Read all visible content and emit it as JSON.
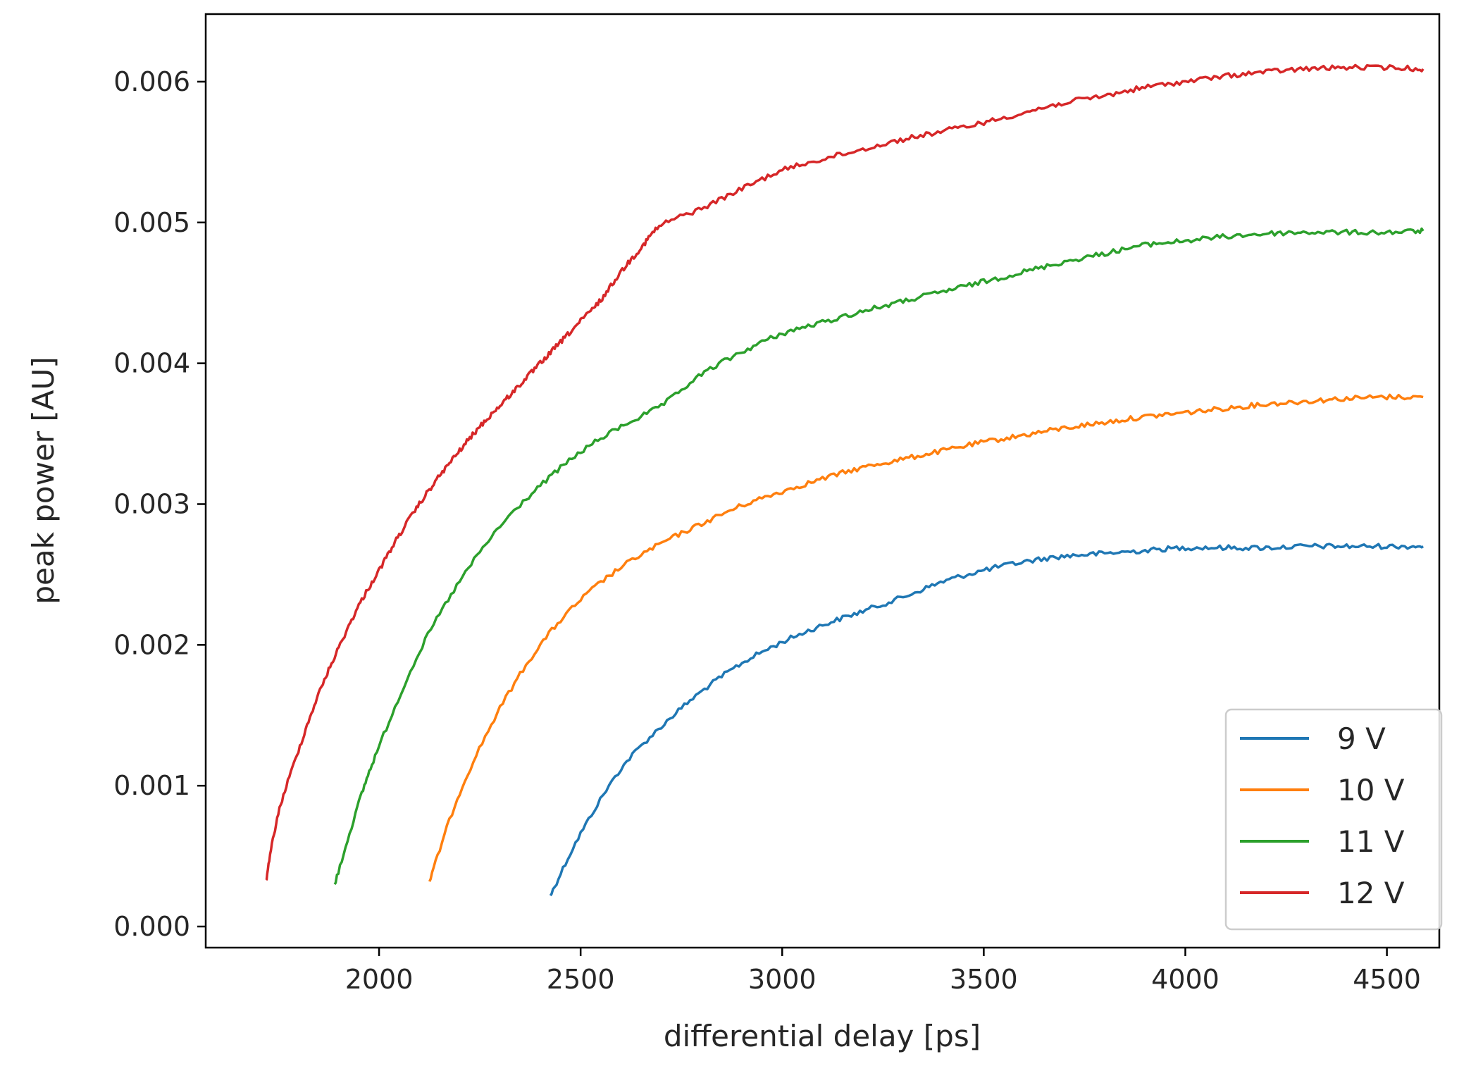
{
  "chart_data": {
    "type": "line",
    "title": "",
    "xlabel": "differential delay [ps]",
    "ylabel": "peak power [AU]",
    "xlim": [
      1570,
      4630
    ],
    "ylim": [
      -0.00015,
      0.00648
    ],
    "xticks": [
      2000,
      2500,
      3000,
      3500,
      4000,
      4500
    ],
    "xtick_labels": [
      "2000",
      "2500",
      "3000",
      "3500",
      "4000",
      "4500"
    ],
    "yticks": [
      0.0,
      0.001,
      0.002,
      0.003,
      0.004,
      0.005,
      0.006
    ],
    "ytick_labels": [
      "0.000",
      "0.001",
      "0.002",
      "0.003",
      "0.004",
      "0.005",
      "0.006"
    ],
    "grid": false,
    "legend_position": "lower-right",
    "series": [
      {
        "name": "9 V",
        "color": "#1f77b4",
        "x": [
          2425,
          2500,
          2600,
          2700,
          2800,
          2900,
          3000,
          3100,
          3200,
          3300,
          3400,
          3500,
          3600,
          3700,
          3800,
          3900,
          4000,
          4100,
          4200,
          4300,
          4400,
          4500,
          4590
        ],
        "y": [
          0.00022,
          0.00066,
          0.00112,
          0.00142,
          0.00167,
          0.00187,
          0.00202,
          0.00214,
          0.00224,
          0.00234,
          0.00245,
          0.00253,
          0.00259,
          0.00263,
          0.00265,
          0.00267,
          0.00269,
          0.00269,
          0.00269,
          0.0027,
          0.0027,
          0.0027,
          0.0027
        ]
      },
      {
        "name": "10 V",
        "color": "#ff7f0e",
        "x": [
          2125,
          2200,
          2300,
          2400,
          2500,
          2600,
          2700,
          2800,
          2900,
          3000,
          3100,
          3200,
          3300,
          3400,
          3500,
          3600,
          3700,
          3800,
          3900,
          4000,
          4100,
          4200,
          4300,
          4400,
          4500,
          4590
        ],
        "y": [
          0.00032,
          0.00095,
          0.00155,
          0.002,
          0.00232,
          0.00255,
          0.00272,
          0.00286,
          0.00299,
          0.00309,
          0.00318,
          0.00326,
          0.00332,
          0.00338,
          0.00344,
          0.00349,
          0.00354,
          0.00358,
          0.00362,
          0.00365,
          0.00368,
          0.00371,
          0.00373,
          0.00375,
          0.00376,
          0.00376
        ]
      },
      {
        "name": "11 V",
        "color": "#2ca02c",
        "x": [
          1890,
          1950,
          2000,
          2100,
          2200,
          2300,
          2400,
          2500,
          2600,
          2700,
          2800,
          2900,
          3000,
          3100,
          3200,
          3300,
          3400,
          3500,
          3600,
          3700,
          3800,
          3900,
          4000,
          4100,
          4200,
          4300,
          4400,
          4500,
          4590
        ],
        "y": [
          0.0003,
          0.00088,
          0.00128,
          0.00195,
          0.00245,
          0.00284,
          0.00313,
          0.00337,
          0.00355,
          0.0037,
          0.00392,
          0.00408,
          0.00421,
          0.00429,
          0.00437,
          0.00444,
          0.00451,
          0.00458,
          0.00465,
          0.00472,
          0.00478,
          0.00484,
          0.00487,
          0.0049,
          0.00492,
          0.00493,
          0.00493,
          0.00493,
          0.00494
        ]
      },
      {
        "name": "12 V",
        "color": "#d62728",
        "x": [
          1720,
          1750,
          1800,
          1850,
          1900,
          1950,
          2000,
          2050,
          2100,
          2150,
          2200,
          2250,
          2300,
          2350,
          2400,
          2450,
          2500,
          2550,
          2600,
          2650,
          2700,
          2800,
          2900,
          3000,
          3100,
          3200,
          3300,
          3400,
          3500,
          3600,
          3700,
          3800,
          3900,
          4000,
          4100,
          4200,
          4300,
          4400,
          4500,
          4590
        ],
        "y": [
          0.00033,
          0.0008,
          0.00125,
          0.00165,
          0.00198,
          0.00228,
          0.00253,
          0.00278,
          0.003,
          0.0032,
          0.00338,
          0.00355,
          0.0037,
          0.00385,
          0.004,
          0.00415,
          0.0043,
          0.00445,
          0.00465,
          0.00482,
          0.00498,
          0.0051,
          0.00524,
          0.00537,
          0.00545,
          0.00552,
          0.00559,
          0.00565,
          0.00571,
          0.00578,
          0.00585,
          0.0059,
          0.00596,
          0.006,
          0.00604,
          0.00607,
          0.00609,
          0.0061,
          0.0061,
          0.00609
        ]
      }
    ]
  }
}
